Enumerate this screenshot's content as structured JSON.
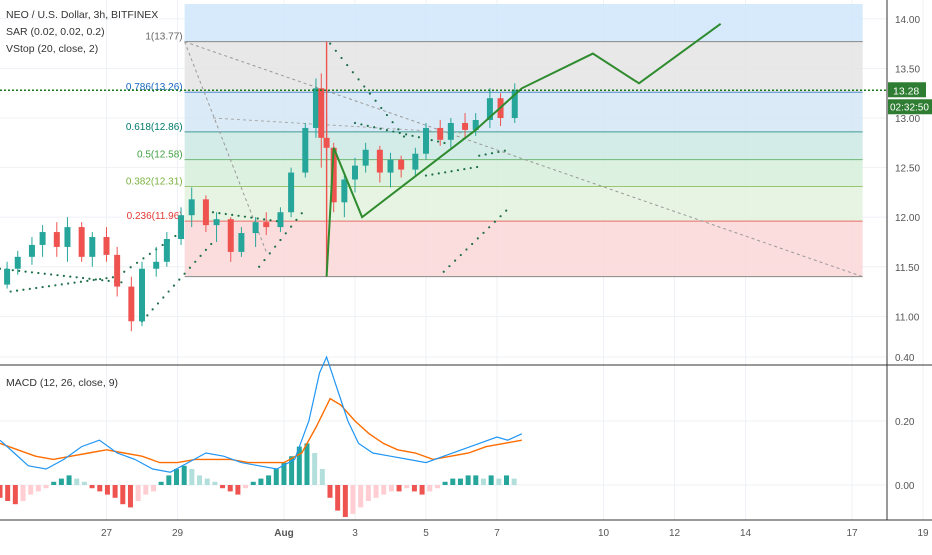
{
  "header": {
    "title": "NEO / U.S. Dollar, 3h, BITFINEX",
    "sar": "SAR (0.02, 0.02, 0.2)",
    "vstop": "VStop (20, close, 2)",
    "macd": "MACD (12, 26, close, 9)"
  },
  "colors": {
    "bull": "#26a69a",
    "bear": "#ef5350",
    "macd_line": "#2196f3",
    "signal_line": "#ff6d00",
    "pattern": "#2e8b2e",
    "current_price": "#1b7a1b",
    "sar_dots": "#1e6e4a"
  },
  "chart_data": [
    {
      "type": "candlestick",
      "name": "price",
      "x_labels": [
        "27",
        "29",
        "Aug",
        "3",
        "5",
        "7",
        "10",
        "12",
        "14",
        "17",
        "19"
      ],
      "x_label_days": [
        27,
        29,
        32,
        34,
        36,
        38,
        41,
        43,
        45,
        48,
        50
      ],
      "y_ticks": [
        "11.00",
        "11.50",
        "12.00",
        "12.50",
        "13.00",
        "13.50",
        "14.00"
      ],
      "ylim": [
        10.6,
        14.15
      ],
      "current_price": "13.28",
      "countdown": "02:32:50",
      "fib_top_label": "1(13.77)",
      "fib_levels": [
        {
          "label": "0.786(13.26)",
          "value": 13.26,
          "color": "#1565c0"
        },
        {
          "label": "0.618(12.86)",
          "value": 12.86,
          "color": "#00796b"
        },
        {
          "label": "0.5(12.58)",
          "value": 12.58,
          "color": "#43a047"
        },
        {
          "label": "0.382(12.31)",
          "value": 12.31,
          "color": "#7cb342"
        },
        {
          "label": "0.236(11.96)",
          "value": 11.96,
          "color": "#e53935"
        }
      ],
      "fib_range": [
        11.4,
        13.77
      ],
      "candles": [
        [
          24.2,
          11.32,
          11.55,
          11.28,
          11.48
        ],
        [
          24.5,
          11.48,
          11.66,
          11.42,
          11.6
        ],
        [
          24.9,
          11.6,
          11.8,
          11.52,
          11.72
        ],
        [
          25.2,
          11.72,
          11.92,
          11.6,
          11.85
        ],
        [
          25.6,
          11.85,
          11.95,
          11.6,
          11.7
        ],
        [
          25.9,
          11.7,
          12.0,
          11.55,
          11.9
        ],
        [
          26.3,
          11.9,
          11.95,
          11.55,
          11.6
        ],
        [
          26.6,
          11.6,
          11.85,
          11.5,
          11.8
        ],
        [
          27.0,
          11.8,
          11.9,
          11.55,
          11.62
        ],
        [
          27.3,
          11.62,
          11.7,
          11.2,
          11.3
        ],
        [
          27.7,
          11.3,
          11.4,
          10.85,
          10.95
        ],
        [
          28.0,
          10.95,
          11.55,
          10.9,
          11.48
        ],
        [
          28.4,
          11.48,
          11.7,
          11.4,
          11.55
        ],
        [
          28.7,
          11.55,
          11.85,
          11.5,
          11.78
        ],
        [
          29.1,
          11.78,
          12.1,
          11.72,
          12.02
        ],
        [
          29.4,
          12.02,
          12.3,
          11.9,
          12.18
        ],
        [
          29.8,
          12.18,
          12.22,
          11.85,
          11.92
        ],
        [
          30.1,
          11.92,
          12.05,
          11.75,
          11.98
        ],
        [
          30.5,
          11.98,
          12.0,
          11.55,
          11.65
        ],
        [
          30.8,
          11.65,
          11.9,
          11.6,
          11.84
        ],
        [
          31.2,
          11.84,
          12.0,
          11.7,
          11.95
        ],
        [
          31.5,
          11.95,
          12.05,
          11.82,
          11.9
        ],
        [
          31.9,
          11.9,
          12.1,
          11.85,
          12.05
        ],
        [
          32.2,
          12.05,
          12.5,
          12.0,
          12.45
        ],
        [
          32.6,
          12.45,
          12.95,
          12.4,
          12.9
        ],
        [
          32.9,
          12.9,
          13.4,
          12.8,
          13.3
        ],
        [
          33.05,
          13.3,
          13.45,
          12.5,
          12.8
        ],
        [
          33.2,
          12.8,
          13.05,
          11.4,
          12.7
        ],
        [
          33.4,
          12.7,
          12.75,
          12.05,
          12.15
        ],
        [
          33.7,
          12.15,
          12.45,
          12.0,
          12.38
        ],
        [
          34.0,
          12.38,
          12.6,
          12.25,
          12.52
        ],
        [
          34.3,
          12.52,
          12.75,
          12.45,
          12.68
        ],
        [
          34.7,
          12.68,
          12.72,
          12.35,
          12.45
        ],
        [
          35.0,
          12.45,
          12.65,
          12.3,
          12.58
        ],
        [
          35.3,
          12.58,
          12.62,
          12.4,
          12.48
        ],
        [
          35.7,
          12.48,
          12.7,
          12.42,
          12.64
        ],
        [
          36.0,
          12.64,
          12.95,
          12.58,
          12.9
        ],
        [
          36.4,
          12.9,
          12.98,
          12.72,
          12.78
        ],
        [
          36.7,
          12.78,
          13.0,
          12.7,
          12.95
        ],
        [
          37.1,
          12.95,
          13.05,
          12.8,
          12.88
        ],
        [
          37.4,
          12.88,
          13.05,
          12.82,
          12.98
        ],
        [
          37.8,
          12.98,
          13.3,
          12.9,
          13.2
        ],
        [
          38.1,
          13.2,
          13.25,
          12.92,
          13.0
        ],
        [
          38.5,
          13.0,
          13.35,
          12.95,
          13.28
        ]
      ],
      "pattern_points": [
        [
          33.2,
          11.4
        ],
        [
          33.4,
          12.7
        ],
        [
          34.2,
          12.0
        ],
        [
          37.4,
          12.88
        ],
        [
          38.7,
          13.3
        ],
        [
          40.7,
          13.65
        ],
        [
          42.0,
          13.35
        ],
        [
          44.3,
          13.95
        ]
      ]
    },
    {
      "type": "macd",
      "name": "MACD",
      "y_ticks": [
        "0.00",
        "0.20",
        "0.40"
      ],
      "ylim": [
        -0.15,
        0.44
      ]
    }
  ]
}
